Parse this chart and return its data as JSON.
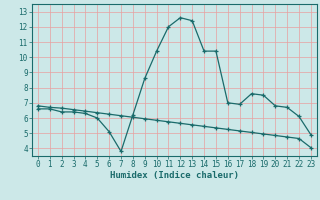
{
  "title": "",
  "xlabel": "Humidex (Indice chaleur)",
  "bg_color": "#cce8e8",
  "line_color": "#1a6b6b",
  "xlim": [
    -0.5,
    23.5
  ],
  "ylim": [
    3.5,
    13.5
  ],
  "xticks": [
    0,
    1,
    2,
    3,
    4,
    5,
    6,
    7,
    8,
    9,
    10,
    11,
    12,
    13,
    14,
    15,
    16,
    17,
    18,
    19,
    20,
    21,
    22,
    23
  ],
  "yticks": [
    4,
    5,
    6,
    7,
    8,
    9,
    10,
    11,
    12,
    13
  ],
  "curve1_x": [
    0,
    1,
    2,
    3,
    4,
    5,
    6,
    7,
    8,
    9,
    10,
    11,
    12,
    13,
    14,
    15,
    16,
    17,
    18,
    19,
    20,
    21,
    22,
    23
  ],
  "curve1_y": [
    6.6,
    6.6,
    6.4,
    6.4,
    6.3,
    6.0,
    5.1,
    3.8,
    6.2,
    8.6,
    10.4,
    12.0,
    12.6,
    12.4,
    10.4,
    10.4,
    7.0,
    6.9,
    7.6,
    7.5,
    6.8,
    6.7,
    6.1,
    4.9
  ],
  "curve2_x": [
    0,
    1,
    2,
    3,
    4,
    5,
    6,
    7,
    8,
    9,
    10,
    11,
    12,
    13,
    14,
    15,
    16,
    17,
    18,
    19,
    20,
    21,
    22,
    23
  ],
  "curve2_y": [
    6.8,
    6.7,
    6.65,
    6.55,
    6.45,
    6.35,
    6.25,
    6.15,
    6.05,
    5.95,
    5.85,
    5.75,
    5.65,
    5.55,
    5.45,
    5.35,
    5.25,
    5.15,
    5.05,
    4.95,
    4.85,
    4.75,
    4.65,
    4.05
  ],
  "vgrid_color": "#e8a0a0",
  "hgrid_color": "#ddc8c8",
  "tick_fontsize": 5.5,
  "xlabel_fontsize": 6.5
}
